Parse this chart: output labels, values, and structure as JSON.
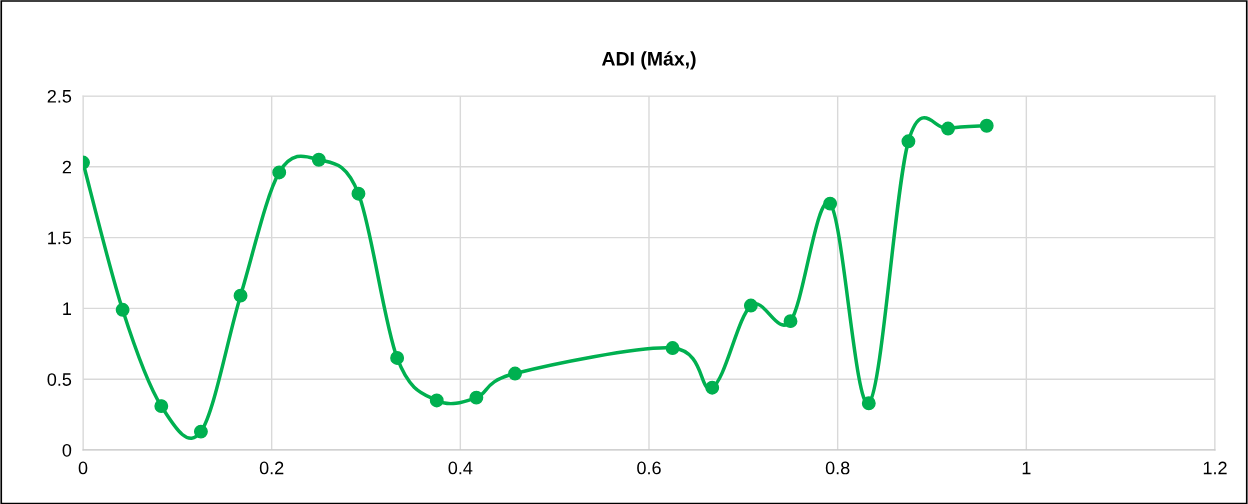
{
  "chart_data": {
    "type": "line",
    "title": "ADI (Máx,)",
    "series": [
      {
        "color": "#00b050",
        "x": [
          0,
          0.042,
          0.083,
          0.125,
          0.167,
          0.208,
          0.25,
          0.292,
          0.333,
          0.375,
          0.417,
          0.458,
          0.625,
          0.667,
          0.708,
          0.75,
          0.792,
          0.833,
          0.875,
          0.917,
          0.958
        ],
        "values": [
          2.03,
          0.99,
          0.31,
          0.13,
          1.09,
          1.96,
          2.05,
          1.81,
          0.65,
          0.35,
          0.37,
          0.54,
          0.72,
          0.44,
          1.02,
          0.91,
          1.74,
          0.33,
          2.18,
          2.27,
          2.29
        ]
      }
    ],
    "xlim": [
      0,
      1.2
    ],
    "xticks": [
      0,
      0.2,
      0.4,
      0.6,
      0.8,
      1,
      1.2
    ],
    "ylim": [
      0,
      2.5
    ],
    "yticks": [
      0,
      0.5,
      1,
      1.5,
      2,
      2.5
    ],
    "grid": true,
    "legend": false,
    "marker": "circle",
    "line_style": "solid"
  }
}
